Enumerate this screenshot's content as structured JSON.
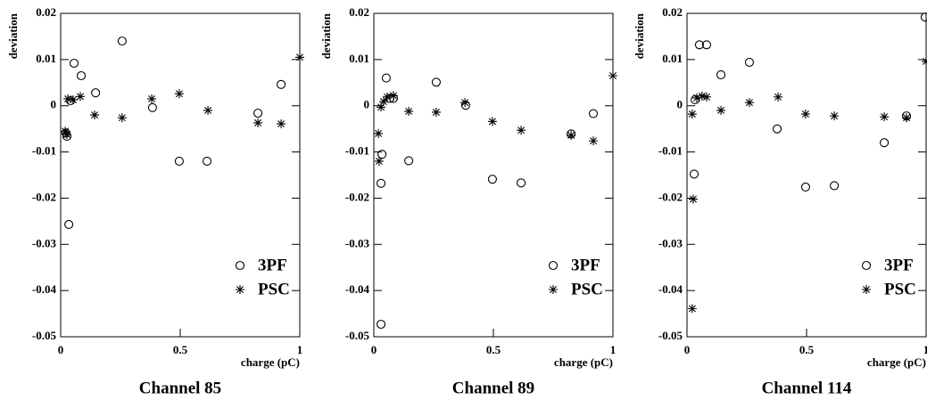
{
  "chart_data": [
    {
      "type": "scatter",
      "title": "Channel 85",
      "x_label": "charge (pC)",
      "y_label": "deviation",
      "xlim": [
        0,
        1
      ],
      "ylim": [
        -0.05,
        0.02
      ],
      "xticks": [
        0,
        0.5,
        1
      ],
      "yticks": [
        -0.05,
        -0.04,
        -0.03,
        -0.02,
        -0.01,
        0,
        0.01,
        0.02
      ],
      "legend": "lower right",
      "series": [
        {
          "name": "3PF",
          "marker": "circle",
          "color": "#000000",
          "x": [
            0.022,
            0.026,
            0.034,
            0.041,
            0.056,
            0.086,
            0.146,
            0.257,
            0.384,
            0.496,
            0.612,
            0.825,
            0.922
          ],
          "y": [
            -0.0059,
            -0.0066,
            -0.0257,
            0.0011,
            0.0092,
            0.0065,
            0.0028,
            0.014,
            -0.0004,
            -0.012,
            -0.012,
            -0.0016,
            0.0046
          ]
        },
        {
          "name": "PSC",
          "marker": "star",
          "color": "#000000",
          "x": [
            0.019,
            0.026,
            0.03,
            0.052,
            0.082,
            0.142,
            0.257,
            0.381,
            0.496,
            0.616,
            0.825,
            0.922,
            1.0
          ],
          "y": [
            -0.0055,
            -0.0062,
            0.0015,
            0.0013,
            0.002,
            -0.002,
            -0.0026,
            0.0015,
            0.0026,
            -0.001,
            -0.0037,
            -0.0039,
            0.0105
          ]
        }
      ]
    },
    {
      "type": "scatter",
      "title": "Channel 89",
      "x_label": "charge (pC)",
      "y_label": "deviation",
      "xlim": [
        0,
        1
      ],
      "ylim": [
        -0.05,
        0.02
      ],
      "xticks": [
        0,
        0.5,
        1
      ],
      "yticks": [
        -0.05,
        -0.04,
        -0.03,
        -0.02,
        -0.01,
        0,
        0.01,
        0.02
      ],
      "legend": "lower right",
      "series": [
        {
          "name": "3PF",
          "marker": "circle",
          "color": "#000000",
          "x": [
            0.03,
            0.034,
            0.03,
            0.052,
            0.067,
            0.082,
            0.146,
            0.261,
            0.384,
            0.496,
            0.616,
            0.825,
            0.918
          ],
          "y": [
            -0.0168,
            -0.0105,
            -0.0473,
            0.006,
            0.0016,
            0.0016,
            -0.0119,
            0.0051,
            0.0001,
            -0.0159,
            -0.0167,
            -0.0061,
            -0.0017
          ]
        },
        {
          "name": "PSC",
          "marker": "star",
          "color": "#000000",
          "x": [
            0.022,
            0.019,
            0.03,
            0.041,
            0.056,
            0.082,
            0.146,
            0.261,
            0.381,
            0.496,
            0.616,
            0.825,
            0.918,
            1.0
          ],
          "y": [
            -0.012,
            -0.006,
            -0.0003,
            0.0009,
            0.0019,
            0.0022,
            -0.0012,
            -0.0014,
            0.0007,
            -0.0034,
            -0.0053,
            -0.0064,
            -0.0076,
            0.0065
          ]
        }
      ]
    },
    {
      "type": "scatter",
      "title": "Channel 114",
      "x_label": "charge (pC)",
      "y_label": "deviation",
      "xlim": [
        0,
        1
      ],
      "ylim": [
        -0.05,
        0.02
      ],
      "xticks": [
        0,
        0.5,
        1
      ],
      "yticks": [
        -0.05,
        -0.04,
        -0.03,
        -0.02,
        -0.01,
        0,
        0.01,
        0.02
      ],
      "legend": "lower right",
      "series": [
        {
          "name": "3PF",
          "marker": "circle",
          "color": "#000000",
          "x": [
            0.03,
            0.034,
            0.052,
            0.082,
            0.142,
            0.261,
            0.377,
            0.496,
            0.616,
            0.825,
            0.918,
            0.996
          ],
          "y": [
            -0.0148,
            0.0013,
            0.0132,
            0.0132,
            0.0067,
            0.0094,
            -0.005,
            -0.0176,
            -0.0173,
            -0.008,
            -0.0022,
            0.0192
          ]
        },
        {
          "name": "PSC",
          "marker": "star",
          "color": "#000000",
          "x": [
            0.022,
            0.026,
            0.022,
            0.041,
            0.063,
            0.082,
            0.142,
            0.261,
            0.381,
            0.496,
            0.616,
            0.825,
            0.918,
            1.0
          ],
          "y": [
            -0.0018,
            -0.0202,
            -0.0439,
            0.0017,
            0.0021,
            0.0019,
            -0.001,
            0.0007,
            0.0019,
            -0.0018,
            -0.0022,
            -0.0024,
            -0.0026,
            0.0096
          ]
        }
      ]
    }
  ]
}
